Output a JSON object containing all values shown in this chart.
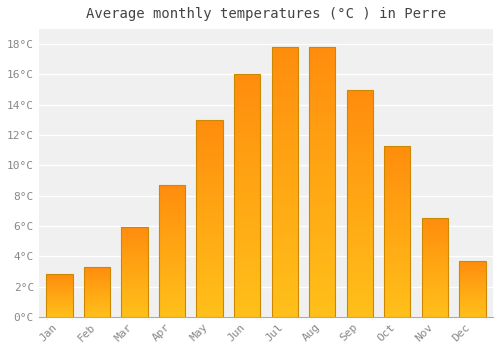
{
  "title": "Average monthly temperatures (°C ) in Perre",
  "months": [
    "Jan",
    "Feb",
    "Mar",
    "Apr",
    "May",
    "Jun",
    "Jul",
    "Aug",
    "Sep",
    "Oct",
    "Nov",
    "Dec"
  ],
  "values": [
    2.8,
    3.3,
    5.9,
    8.7,
    13.0,
    16.0,
    17.8,
    17.8,
    15.0,
    11.3,
    6.5,
    3.7
  ],
  "bar_color": "#FFA500",
  "bar_edge_color": "#CC8800",
  "ylim": [
    0,
    19
  ],
  "yticks": [
    0,
    2,
    4,
    6,
    8,
    10,
    12,
    14,
    16,
    18
  ],
  "background_color": "#FFFFFF",
  "plot_bg_color": "#F0F0F0",
  "grid_color": "#FFFFFF",
  "title_fontsize": 10,
  "tick_fontsize": 8,
  "title_color": "#444444",
  "tick_color": "#888888"
}
